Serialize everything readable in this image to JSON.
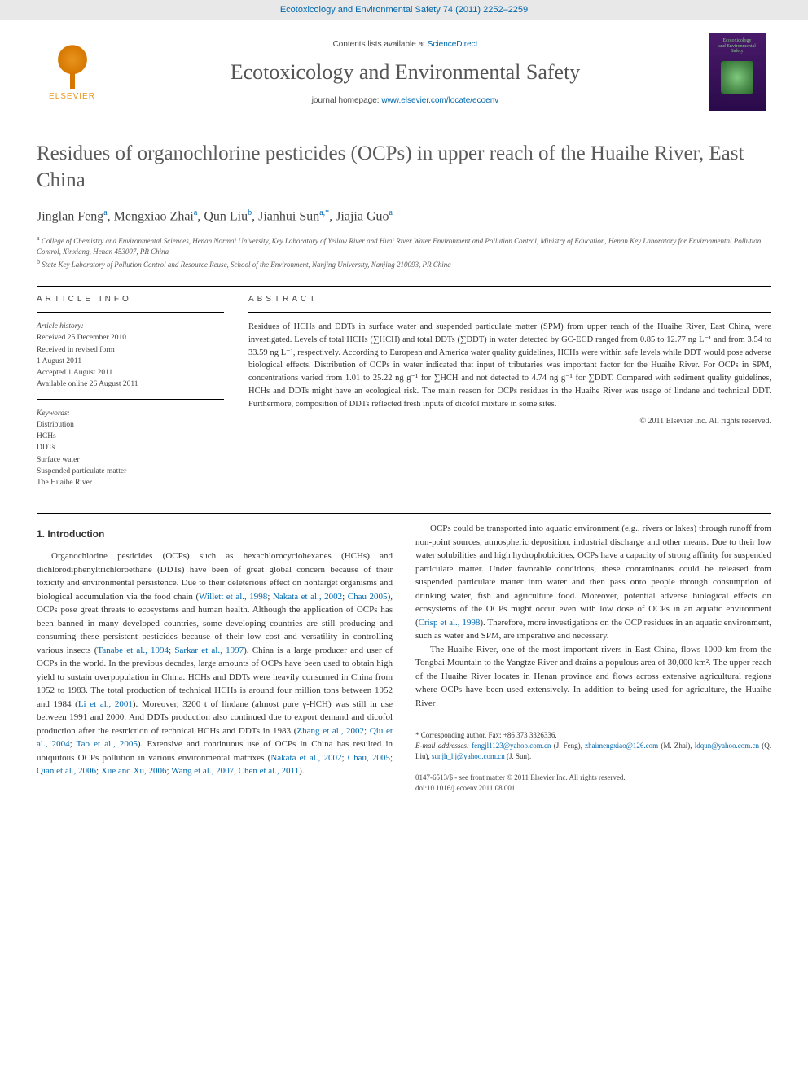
{
  "banner": {
    "journal_citation": "Ecotoxicology and Environmental Safety 74 (2011) 2252–2259"
  },
  "header": {
    "elsevier_label": "ELSEVIER",
    "contents_prefix": "Contents lists available at ",
    "contents_link": "ScienceDirect",
    "journal_name": "Ecotoxicology and Environmental Safety",
    "homepage_prefix": "journal homepage: ",
    "homepage_link": "www.elsevier.com/locate/ecoenv",
    "cover_line1": "Ecotoxicology",
    "cover_line2": "and Environmental",
    "cover_line3": "Safety"
  },
  "article": {
    "title": "Residues of organochlorine pesticides (OCPs) in upper reach of the Huaihe River, East China",
    "authors_html": "Jinglan Feng<sup>a</sup>, Mengxiao Zhai<sup>a</sup>, Qun Liu<sup>b</sup>, Jianhui Sun<sup>a,*</sup>, Jiajia Guo<sup>a</sup>",
    "affiliations": [
      {
        "sup": "a",
        "text": "College of Chemistry and Environmental Sciences, Henan Normal University, Key Laboratory of Yellow River and Huai River Water Environment and Pollution Control, Ministry of Education, Henan Key Laboratory for Environmental Pollution Control, Xinxiang, Henan 453007, PR China"
      },
      {
        "sup": "b",
        "text": "State Key Laboratory of Pollution Control and Resource Reuse, School of the Environment, Nanjing University, Nanjing 210093, PR China"
      }
    ]
  },
  "info": {
    "label": "article info",
    "history_heading": "Article history:",
    "history": [
      "Received 25 December 2010",
      "Received in revised form",
      "1 August 2011",
      "Accepted 1 August 2011",
      "Available online 26 August 2011"
    ],
    "keywords_heading": "Keywords:",
    "keywords": [
      "Distribution",
      "HCHs",
      "DDTs",
      "Surface water",
      "Suspended particulate matter",
      "The Huaihe River"
    ]
  },
  "abstract": {
    "label": "abstract",
    "text": "Residues of HCHs and DDTs in surface water and suspended particulate matter (SPM) from upper reach of the Huaihe River, East China, were investigated. Levels of total HCHs (∑HCH) and total DDTs (∑DDT) in water detected by GC-ECD ranged from 0.85 to 12.77 ng L⁻¹ and from 3.54 to 33.59 ng L⁻¹, respectively. According to European and America water quality guidelines, HCHs were within safe levels while DDT would pose adverse biological effects. Distribution of OCPs in water indicated that input of tributaries was important factor for the Huaihe River. For OCPs in SPM, concentrations varied from 1.01 to 25.22 ng g⁻¹ for ∑HCH and not detected to 4.74 ng g⁻¹ for ∑DDT. Compared with sediment quality guidelines, HCHs and DDTs might have an ecological risk. The main reason for OCPs residues in the Huaihe River was usage of lindane and technical DDT. Furthermore, composition of DDTs reflected fresh inputs of dicofol mixture in some sites.",
    "copyright": "© 2011 Elsevier Inc. All rights reserved."
  },
  "body": {
    "heading": "1. Introduction",
    "p1_a": "Organochlorine pesticides (OCPs) such as hexachlorocyclohexanes (HCHs) and dichlorodiphenyltrichloroethane (DDTs) have been of great global concern because of their toxicity and environmental persistence. Due to their deleterious effect on nontarget organisms and biological accumulation via the food chain (",
    "p1_link1": "Willett et al., 1998",
    "p1_b": "; ",
    "p1_link2": "Nakata et al., 2002",
    "p1_c": "; ",
    "p1_link3": "Chau 2005",
    "p1_d": "), OCPs pose great threats to ecosystems and human health. Although the application of OCPs has been banned in many developed countries, some developing countries are still producing and consuming these persistent pesticides because of their low cost and versatility in controlling various insects (",
    "p1_link4": "Tanabe et al., 1994",
    "p1_e": "; ",
    "p1_link5": "Sarkar et al., 1997",
    "p1_f": "). China is a large producer and user of OCPs in the world. In the previous decades, large amounts of OCPs have been used to obtain high yield to sustain overpopulation in China. HCHs and DDTs were heavily consumed in China from 1952 to 1983. The total production of technical HCHs is around four million tons between 1952 and 1984 (",
    "p1_link6": "Li et al., 2001",
    "p1_g": "). Moreover, 3200 t of lindane (almost pure γ-HCH) was still in use between 1991 and 2000. And DDTs production also continued due to export demand and dicofol production after the restriction of technical HCHs and DDTs in 1983 (",
    "p1_link7": "Zhang et al., 2002",
    "p1_h": "; ",
    "p1_link8": "Qiu et al., 2004",
    "p1_i": "; ",
    "p1_link9": "Tao et al., 2005",
    "p1_j": "). Extensive and continuous use of OCPs in China has resulted in ubiquitous OCPs pollution in various environmental matrixes (",
    "p1_link10": "Nakata et al., 2002",
    "p1_k": "; ",
    "p1_link11": "Chau, 2005",
    "p1_l": "; ",
    "p1_link12": "Qian et al., 2006",
    "p1_m": "; ",
    "p1_link13": "Xue and Xu, 2006",
    "p1_n": "; ",
    "p1_link14": "Wang et al., 2007",
    "p1_o": ", ",
    "p1_link15": "Chen et al., 2011",
    "p1_p": ").",
    "p2_a": "OCPs could be transported into aquatic environment (e.g., rivers or lakes) through runoff from non-point sources, atmospheric deposition, industrial discharge and other means. Due to their low water solubilities and high hydrophobicities, OCPs have a capacity of strong affinity for suspended particulate matter. Under favorable conditions, these contaminants could be released from suspended particulate matter into water and then pass onto people through consumption of drinking water, fish and agriculture food. Moreover, potential adverse biological effects on ecosystems of the OCPs might occur even with low dose of OCPs in an aquatic environment (",
    "p2_link1": "Crisp et al., 1998",
    "p2_b": "). Therefore, more investigations on the OCP residues in an aquatic environment, such as water and SPM, are imperative and necessary.",
    "p3": "The Huaihe River, one of the most important rivers in East China, flows 1000 km from the Tongbai Mountain to the Yangtze River and drains a populous area of 30,000 km². The upper reach of the Huaihe River locates in Henan province and flows across extensive agricultural regions where OCPs have been used extensively. In addition to being used for agriculture, the Huaihe River"
  },
  "footnotes": {
    "corr": "* Corresponding author. Fax: +86 373 3326336.",
    "email_label": "E-mail addresses: ",
    "emails": [
      {
        "addr": "fengjl1123@yahoo.com.cn",
        "who": " (J. Feng),"
      },
      {
        "addr": "zhaimengxiao@126.com",
        "who": " (M. Zhai), "
      },
      {
        "addr": "ldqun@yahoo.com.cn",
        "who": " (Q. Liu),"
      },
      {
        "addr": "sunjh_hj@yahoo.com.cn",
        "who": " (J. Sun)."
      }
    ]
  },
  "bottom": {
    "line1": "0147-6513/$ - see front matter © 2011 Elsevier Inc. All rights reserved.",
    "line2": "doi:10.1016/j.ecoenv.2011.08.001"
  },
  "colors": {
    "link": "#0066aa",
    "banner_bg": "#e8e8e8",
    "elsevier_orange": "#e8941f",
    "cover_purple_top": "#4a1a6a",
    "cover_purple_bottom": "#2a0a4a",
    "cover_green": "#7fc97f",
    "title_gray": "#5a5a5a"
  },
  "typography": {
    "journal_name_size": 26,
    "title_size": 25,
    "authors_size": 16,
    "body_size": 11,
    "abstract_size": 10.5,
    "info_size": 9.5,
    "affil_size": 9,
    "footnote_size": 9
  }
}
